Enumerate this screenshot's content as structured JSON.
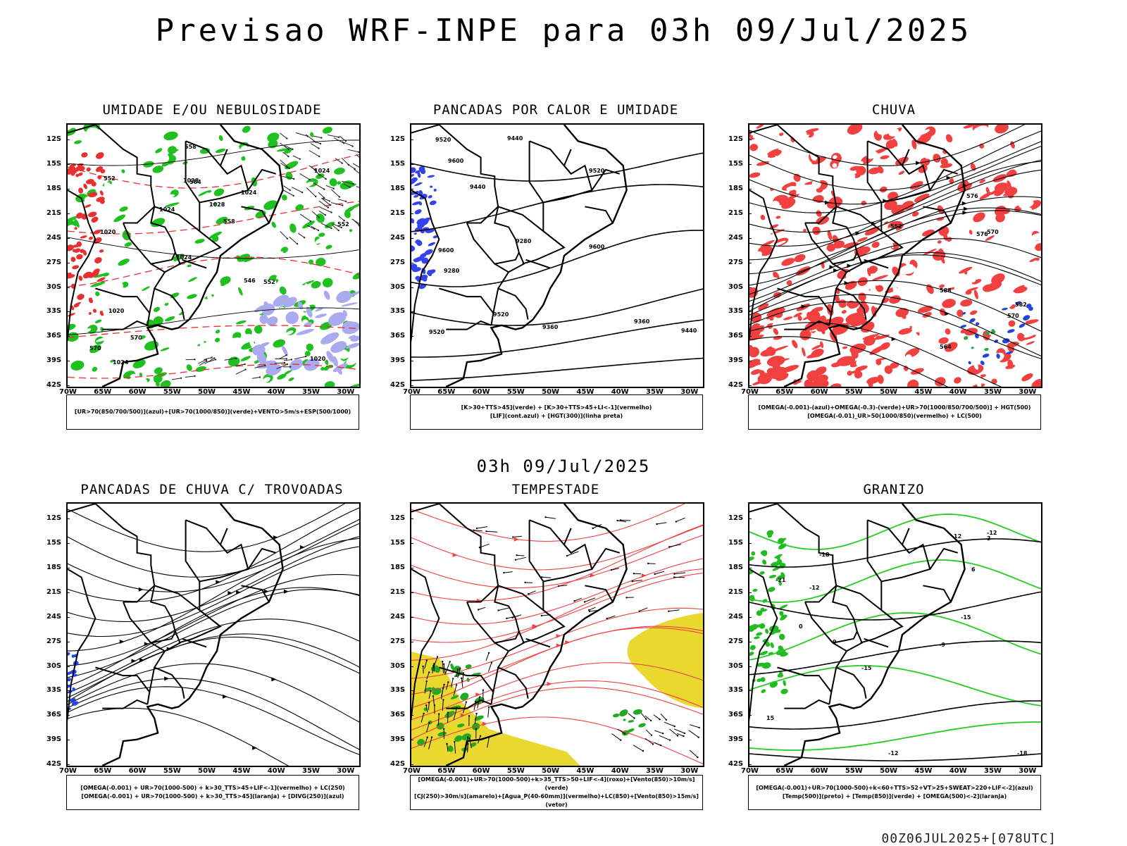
{
  "title": "Previsao WRF-INPE  para 03h 09/Jul/2025",
  "mid_title": "03h 09/Jul/2025",
  "footer": "00Z06JUL2025+[078UTC]",
  "y_ticks": [
    "12S",
    "15S",
    "18S",
    "21S",
    "24S",
    "27S",
    "30S",
    "33S",
    "36S",
    "39S",
    "42S"
  ],
  "x_ticks": [
    "70W",
    "65W",
    "60W",
    "55W",
    "50W",
    "45W",
    "40W",
    "35W",
    "30W"
  ],
  "panels": [
    {
      "id": "umidade",
      "title": "UMIDADE E/OU NEBULOSIDADE",
      "legend": [
        "[UR>70(850/700/500)](azul)+[UR>70(1000/850)](verde)+VENTO>5m/s+ESP(500/1000)"
      ],
      "contour_labels": [
        "1020",
        "1020",
        "1024",
        "1024",
        "1024",
        "1024",
        "1028",
        "1028",
        "1020",
        "1024",
        "570",
        "570",
        "564",
        "558",
        "552",
        "552",
        "558",
        "552",
        "546"
      ]
    },
    {
      "id": "pancadas-calor",
      "title": "PANCADAS POR CALOR E UMIDADE",
      "legend": [
        "[K>30+TTS>45](verde) + [K>30+TTS>45+LI<-1](vermelho)",
        "[LIF](cont.azul) + [HGT(300)](linha preta)"
      ],
      "contour_labels": [
        "9600",
        "9600",
        "9600",
        "9520",
        "9520",
        "9520",
        "9520",
        "9440",
        "9440",
        "9440",
        "9360",
        "9360",
        "9280",
        "9280"
      ]
    },
    {
      "id": "chuva",
      "title": "CHUVA",
      "legend": [
        "[OMEGA(-0.001)-(azul)+OMEGA(-0.3)-(verde)+UR>70(1000/850/700/500)] + HGT(500)",
        "[OMEGA(-0.01)_UR>50(1000/850)(vermelho) + LC(500)"
      ],
      "contour_labels": [
        "588",
        "582",
        "576",
        "570",
        "564",
        "576",
        "570",
        "552"
      ]
    },
    {
      "id": "pancadas-trovoadas",
      "title": "PANCADAS DE CHUVA C/ TROVOADAS",
      "legend": [
        "[OMEGA(-0.001) + UR>70(1000-500) + k>30_TTS>45+LIF<-1](vermelho) + LC(250)",
        "[OMEGA(-0.001) + UR>70(1000-500) + k>30_TTS>45](laranja) + [DIVG(250)](azul)"
      ],
      "contour_labels": []
    },
    {
      "id": "tempestade",
      "title": "TEMPESTADE",
      "legend": [
        "[OMEGA(-0.001)+UR>70(1000-500)+k>35_TTS>50+LIF<-4](roxo)+[Vento(850)>10m/s](verde)",
        "[CJ(250)>30m/s](amarelo)+[Agua_P(40-60mm)](vermelho)+LC(850)+[Vento(850)>15m/s](vetor)"
      ],
      "contour_labels": []
    },
    {
      "id": "granizo",
      "title": "GRANIZO",
      "legend": [
        "[OMEGA(-0.001)+UR>70(1000-500)+k<60+TTS>52+VT>25+SWEAT>220+LIF<-2](azul)",
        "[Temp(500)](preto) + [Temp(850)](verde) + [OMEGA(500)<-2](laranja)"
      ],
      "contour_labels": [
        "-9",
        "-12",
        "-12",
        "-12",
        "-15",
        "-15",
        "-18",
        "-18",
        "-21",
        "0",
        "3",
        "6",
        "9",
        "12",
        "15"
      ]
    }
  ]
}
